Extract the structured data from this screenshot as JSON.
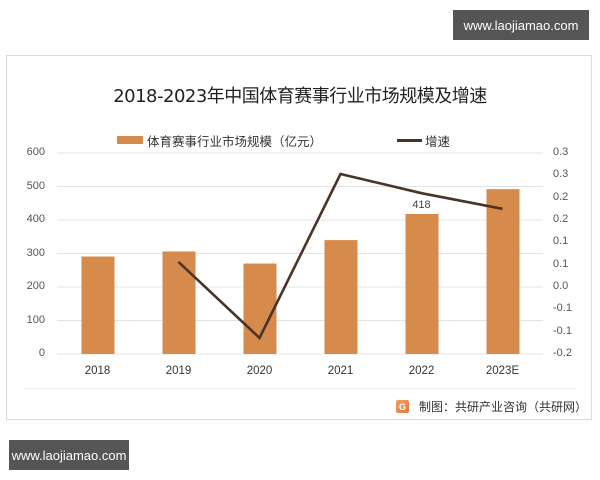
{
  "watermark": {
    "top": "www.laojiamao.com",
    "bottom": "www.laojiamao.com"
  },
  "source": {
    "logo_glyph": "G",
    "text": "制图：共研产业咨询（共研网）"
  },
  "colors": {
    "bar": "#d68a4c",
    "line": "#4a3426",
    "grid": "#e4e4e4"
  },
  "chart_data": {
    "type": "bar+line",
    "title": "2018-2023年中国体育赛事行业市场规模及增速",
    "categories": [
      "2018",
      "2019",
      "2020",
      "2021",
      "2022",
      "2023E"
    ],
    "series": [
      {
        "name": "体育赛事行业市场规模（亿元）",
        "type": "bar",
        "axis": "left",
        "values": [
          291,
          306,
          270,
          340,
          418,
          492
        ],
        "data_labels": {
          "2022": "418"
        }
      },
      {
        "name": "增速",
        "type": "line",
        "axis": "right",
        "values": [
          null,
          0.056,
          -0.114,
          0.253,
          0.21,
          0.175
        ]
      }
    ],
    "left_axis": {
      "ticks": [
        "600",
        "500",
        "400",
        "300",
        "200",
        "100",
        "0"
      ],
      "ylim": [
        0,
        600
      ]
    },
    "right_axis": {
      "ticks": [
        "0.3",
        "0.3",
        "0.2",
        "0.2",
        "0.1",
        "0.1",
        "0.0",
        "-0.1",
        "-0.1",
        "-0.2"
      ],
      "ylim": [
        -0.15,
        0.3
      ]
    },
    "xlabel": "",
    "ylabel": "",
    "grid": true,
    "legend_position": "top"
  }
}
